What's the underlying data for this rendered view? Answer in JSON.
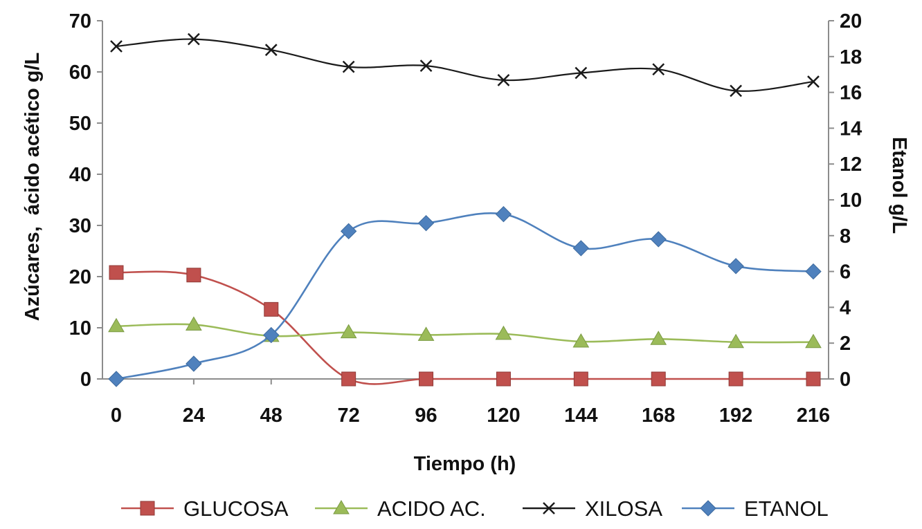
{
  "chart_data": {
    "type": "line",
    "x": [
      0,
      24,
      48,
      72,
      96,
      120,
      144,
      168,
      192,
      216
    ],
    "xlabel": "Tiempo (h)",
    "ylabel": "Azúcares,  ácido acético g/L",
    "ylabel2": "Etanol g/L",
    "ylim": [
      0,
      70
    ],
    "yticks": [
      "0",
      "10",
      "20",
      "30",
      "40",
      "50",
      "60",
      "70"
    ],
    "ylim2": [
      0,
      20
    ],
    "yticks2": [
      "0",
      "2",
      "4",
      "6",
      "8",
      "10",
      "12",
      "14",
      "16",
      "18",
      "20"
    ],
    "xticks": [
      "0",
      "24",
      "48",
      "72",
      "96",
      "120",
      "144",
      "168",
      "192",
      "216"
    ],
    "legend_position": "bottom",
    "series": [
      {
        "name": "GLUCOSA",
        "axis": "left",
        "color": "#c0504d",
        "marker": "square",
        "values": [
          20.8,
          20.3,
          13.6,
          0,
          0,
          0,
          0,
          0,
          0,
          0
        ]
      },
      {
        "name": "ACIDO AC.",
        "axis": "left",
        "color": "#9bbb59",
        "marker": "triangle",
        "values": [
          10.3,
          10.6,
          8.4,
          9.1,
          8.6,
          8.8,
          7.3,
          7.8,
          7.2,
          7.2
        ]
      },
      {
        "name": "XILOSA",
        "axis": "left",
        "color": "#1a1a1a",
        "marker": "x",
        "values": [
          65.0,
          66.4,
          64.3,
          61.0,
          61.2,
          58.4,
          59.8,
          60.5,
          56.3,
          58.1
        ]
      },
      {
        "name": "ETANOL",
        "axis": "right",
        "color": "#4f81bd",
        "marker": "diamond",
        "values": [
          0.0,
          0.85,
          2.45,
          8.25,
          8.7,
          9.2,
          7.3,
          7.8,
          6.3,
          6.0
        ]
      }
    ]
  }
}
